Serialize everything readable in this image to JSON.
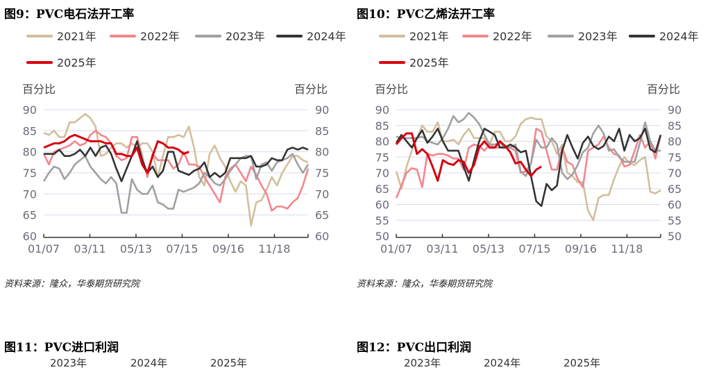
{
  "colors": {
    "2021": "#d2be9b",
    "2022": "#f4858d",
    "2023": "#a0a0a0",
    "2024": "#333333",
    "2025": "#d7000f",
    "grid": "#d6dcec",
    "axis": "#333333"
  },
  "charts": [
    {
      "title": "图9：PVC电石法开工率",
      "unit_left": "百分比",
      "unit_right": "百分比",
      "source": "资料来源：隆众，华泰期货研究院"
    },
    {
      "title": "图10：PVC乙烯法开工率",
      "unit_left": "百分比",
      "unit_right": "百分比",
      "source": "资料来源：隆众，华泰期货研究院"
    }
  ],
  "bottom": [
    {
      "title": "图11：PVC进口利润",
      "legend": [
        "2023年",
        "2024年",
        "2025年"
      ]
    },
    {
      "title": "图12：PVC出口利润",
      "legend": [
        "2023年",
        "2024年",
        "2025年"
      ]
    }
  ],
  "chart_data": [
    {
      "type": "line",
      "title": "PVC电石法开工率",
      "ylabel": "百分比",
      "ylim": [
        60,
        90
      ],
      "yticks": [
        60,
        65,
        70,
        75,
        80,
        85,
        90
      ],
      "x_tick_labels": [
        "01/07",
        "03/11",
        "05/13",
        "07/15",
        "09/16",
        "11/18"
      ],
      "grid": true,
      "legend": "top",
      "series": [
        {
          "name": "2021年",
          "values": [
            84.5,
            84,
            85,
            83.5,
            83.5,
            87,
            87,
            88,
            89,
            88,
            86,
            79,
            79.5,
            81,
            82,
            82,
            81,
            82,
            81,
            82,
            82,
            80,
            74,
            79,
            83.5,
            83.5,
            84,
            83.5,
            86,
            81,
            74,
            72,
            79.5,
            81.5,
            78.5,
            76.5,
            73,
            70.5,
            73,
            72,
            62.5,
            68,
            68.5,
            71,
            74,
            72,
            75,
            77,
            79,
            79,
            78,
            77.5
          ]
        },
        {
          "name": "2022年",
          "values": [
            79.5,
            77,
            80,
            80.5,
            81,
            81.5,
            82.5,
            81.5,
            82,
            84,
            85,
            84,
            83.5,
            82,
            79,
            78,
            78.5,
            83.5,
            83.5,
            79,
            74,
            79.5,
            78,
            78,
            78,
            76,
            77,
            80,
            77,
            77,
            76.5,
            74,
            72,
            70,
            68,
            74,
            76,
            77,
            75,
            73,
            76.5,
            74.5,
            72,
            70,
            66,
            67,
            67,
            66.5,
            68,
            69,
            72,
            76
          ]
        },
        {
          "name": "2023年",
          "values": [
            73,
            75,
            76.5,
            76,
            73.5,
            75,
            77,
            78,
            79,
            76.5,
            75,
            73.5,
            72.5,
            74,
            72.5,
            65.5,
            65.5,
            73.5,
            71,
            70,
            70,
            72,
            68,
            67.5,
            66.5,
            66.5,
            71,
            70.5,
            71,
            71.5,
            72.5,
            75,
            74,
            72.5,
            72,
            73.5,
            75.5,
            77,
            78.5,
            79,
            79,
            73.5,
            77,
            77.5,
            75.5,
            77.5,
            78,
            78.5,
            79.5,
            77,
            75,
            77
          ]
        },
        {
          "name": "2024年",
          "values": [
            79.5,
            79.5,
            79.5,
            80.5,
            79,
            79,
            79.5,
            80.5,
            79,
            81,
            79,
            81,
            81.5,
            79.5,
            76,
            73,
            76,
            79,
            82.5,
            78,
            75,
            76.5,
            74,
            75.5,
            80,
            80,
            75.5,
            75,
            74.5,
            75.5,
            76,
            77.5,
            74,
            75,
            74,
            75,
            78.5,
            78.5,
            78.5,
            78.5,
            79,
            76.5,
            76.5,
            77,
            78.5,
            78,
            78,
            80.5,
            81,
            80.5,
            81,
            80.5
          ]
        },
        {
          "name": "2025年",
          "values": [
            81,
            81.5,
            82,
            82,
            82.5,
            83.5,
            84,
            83.5,
            83,
            82.5,
            82.5,
            82.5,
            82,
            82,
            79.5,
            79.5,
            79,
            79,
            81,
            77,
            75,
            79,
            82.5,
            82,
            81,
            81,
            80.5,
            79.5,
            80
          ]
        }
      ]
    },
    {
      "type": "line",
      "title": "PVC乙烯法开工率",
      "ylabel": "百分比",
      "ylim": [
        50,
        90
      ],
      "yticks": [
        50,
        55,
        60,
        65,
        70,
        75,
        80,
        85,
        90
      ],
      "x_tick_labels": [
        "01/07",
        "03/11",
        "05/13",
        "07/15",
        "09/16",
        "11/18"
      ],
      "grid": true,
      "legend": "top",
      "series": [
        {
          "name": "2021年",
          "values": [
            70.5,
            65,
            72,
            77,
            81,
            85,
            83,
            83,
            86,
            80,
            80,
            80.5,
            79,
            82,
            84,
            81,
            81,
            81,
            79,
            83,
            83,
            80,
            80,
            81.5,
            85.5,
            87,
            87.5,
            87,
            87,
            81.5,
            80,
            76,
            79,
            70,
            69,
            67,
            67,
            58,
            55,
            62,
            63,
            63,
            68,
            72,
            75,
            73,
            72.5,
            74,
            75,
            64,
            63.5,
            64.5
          ]
        },
        {
          "name": "2022年",
          "values": [
            62,
            66,
            70,
            71.5,
            71,
            65.5,
            76,
            75.5,
            76,
            76,
            75.5,
            74.5,
            74.5,
            71,
            78,
            79,
            78.5,
            77,
            79,
            78,
            78,
            78.5,
            78,
            77,
            70,
            70.5,
            73,
            84,
            83,
            77,
            71,
            71,
            78,
            73.5,
            72.5,
            68,
            65.5,
            77,
            78,
            79,
            81.5,
            78,
            76,
            75.5,
            72,
            72.5,
            77,
            82,
            78,
            80,
            74.5,
            82
          ]
        },
        {
          "name": "2023年",
          "values": [
            81.5,
            81,
            81,
            81,
            81,
            81.5,
            80,
            79.5,
            79,
            81,
            84,
            88,
            86,
            87,
            89,
            87.5,
            85.5,
            82,
            79,
            79,
            79.5,
            78,
            78,
            79,
            70.5,
            69,
            73,
            80.5,
            78,
            78,
            81,
            79,
            70,
            68,
            69.5,
            72.5,
            76.5,
            78,
            82.5,
            85,
            82.5,
            77,
            77.5,
            75,
            73.5,
            73.5,
            73.5,
            79.5,
            86,
            80,
            77,
            77
          ]
        },
        {
          "name": "2024年",
          "values": [
            79.5,
            82,
            80,
            78,
            81,
            83.5,
            79.5,
            81.5,
            84,
            80,
            77,
            77,
            77,
            72,
            67.5,
            74,
            80,
            84,
            83,
            82,
            78,
            78,
            79,
            78,
            76.5,
            77,
            69,
            61,
            59.5,
            66.5,
            64.5,
            66,
            77,
            82,
            78,
            74.5,
            79.5,
            81.5,
            78.5,
            77.5,
            78.5,
            81.5,
            80,
            84,
            77,
            82,
            80,
            81,
            84,
            77.5,
            76.5,
            82
          ]
        },
        {
          "name": "2025年",
          "values": [
            79,
            81,
            82.5,
            82.5,
            76,
            77.5,
            76,
            72,
            67.5,
            74,
            73,
            72.5,
            74,
            73.5,
            70,
            72.5,
            78,
            80,
            78,
            78,
            80,
            78.5,
            76.5,
            73,
            73.5,
            71,
            69,
            71,
            72
          ]
        }
      ]
    }
  ]
}
